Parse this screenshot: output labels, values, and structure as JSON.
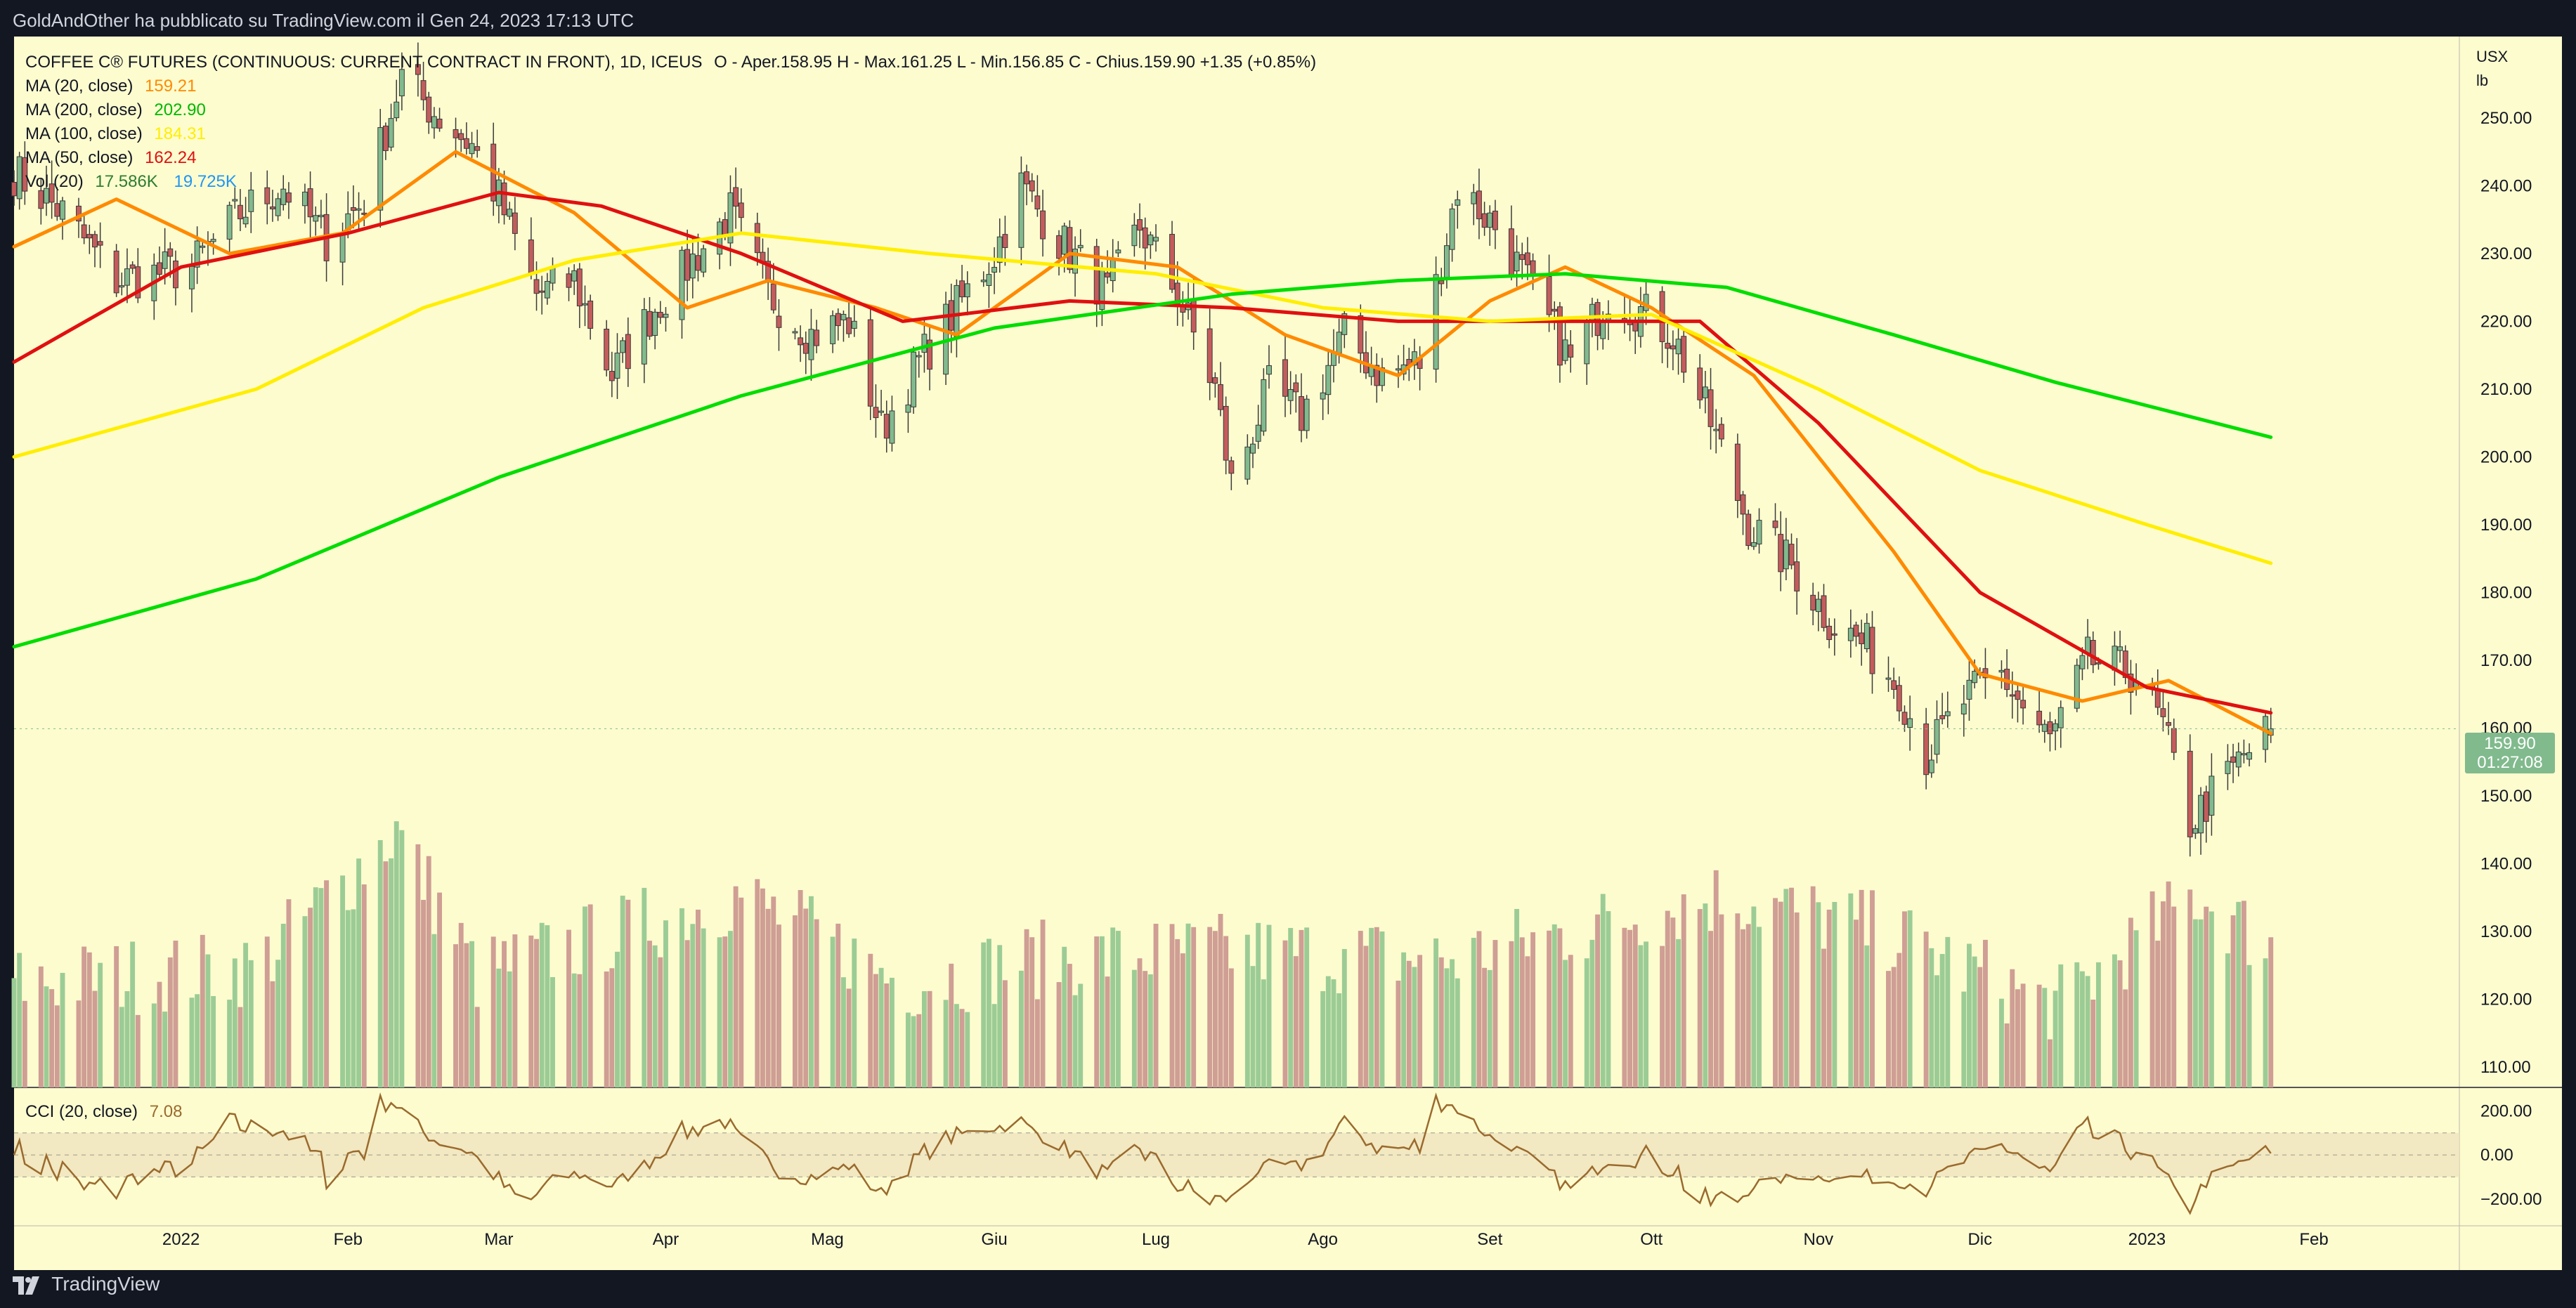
{
  "header": {
    "publish_text": "GoldAndOther ha pubblicato su TradingView.com il Gen 24, 2023 17:13 UTC"
  },
  "footer": {
    "brand": "TradingView",
    "logo_icon": "tradingview-logo-icon"
  },
  "colors": {
    "background": "#fdfccf",
    "up_candle": "#81ba8d",
    "down_candle": "#c45c5c",
    "vol_up": "#9ccc95",
    "vol_down": "#cf9e94",
    "ma20": "#ff8a00",
    "ma200": "#00dd00",
    "ma100": "#ffee00",
    "ma50": "#e01010",
    "cci": "#9a6a2e",
    "last_price_badge": "#81ba8d"
  },
  "legend": {
    "title": "COFFEE C® FUTURES (CONTINUOUS: CURRENT CONTRACT IN FRONT), 1D, ICEUS",
    "ohlc": "O - Aper.158.95  H - Max.161.25  L - Min.156.85  C - Chius.159.90  +1.35 (+0.85%)",
    "ma20_label": "MA (20, close)",
    "ma20_value": "159.21",
    "ma200_label": "MA (200, close)",
    "ma200_value": "202.90",
    "ma100_label": "MA (100, close)",
    "ma100_value": "184.31",
    "ma50_label": "MA (50, close)",
    "ma50_value": "162.24",
    "vol_label": "Vol (20)",
    "vol_value": "17.586K",
    "vol_ma_value": "19.725K",
    "cci_label": "CCI (20, close)",
    "cci_value": "7.08"
  },
  "price_badge": {
    "price": "159.90",
    "countdown": "01:27:08"
  },
  "chart_data": {
    "type": "candlestick",
    "symbol": "COFFEE C® FUTURES (CONTINUOUS: CURRENT CONTRACT IN FRONT)",
    "interval": "1D",
    "exchange": "ICEUS",
    "unit_top": "USX",
    "unit_bottom": "lb",
    "y_ticks": [
      250,
      240,
      230,
      220,
      210,
      200,
      190,
      180,
      170,
      160,
      150,
      140,
      130,
      120,
      110
    ],
    "y_tick_labels": [
      "250.00",
      "240.00",
      "230.00",
      "220.00",
      "210.00",
      "200.00",
      "190.00",
      "180.00",
      "170.00",
      "160.00",
      "150.00",
      "140.00",
      "130.00",
      "120.00",
      "110.00"
    ],
    "ylim": [
      107,
      262
    ],
    "x_range": [
      "2021-12-01",
      "2023-02-28"
    ],
    "x_ticks": [
      {
        "label": "2022",
        "date": "2022-01-01"
      },
      {
        "label": "Feb",
        "date": "2022-02-01"
      },
      {
        "label": "Mar",
        "date": "2022-03-01"
      },
      {
        "label": "Apr",
        "date": "2022-04-01"
      },
      {
        "label": "Mag",
        "date": "2022-05-01"
      },
      {
        "label": "Giu",
        "date": "2022-06-01"
      },
      {
        "label": "Lug",
        "date": "2022-07-01"
      },
      {
        "label": "Ago",
        "date": "2022-08-01"
      },
      {
        "label": "Set",
        "date": "2022-09-01"
      },
      {
        "label": "Ott",
        "date": "2022-10-01"
      },
      {
        "label": "Nov",
        "date": "2022-11-01"
      },
      {
        "label": "Dic",
        "date": "2022-12-01"
      },
      {
        "label": "2023",
        "date": "2023-01-01"
      },
      {
        "label": "Feb",
        "date": "2023-02-01"
      }
    ],
    "price_anchors": [
      {
        "date": "2021-12-01",
        "close": 242
      },
      {
        "date": "2021-12-10",
        "close": 236
      },
      {
        "date": "2021-12-20",
        "close": 226
      },
      {
        "date": "2022-01-03",
        "close": 228
      },
      {
        "date": "2022-01-12",
        "close": 236
      },
      {
        "date": "2022-01-20",
        "close": 240
      },
      {
        "date": "2022-01-28",
        "close": 232
      },
      {
        "date": "2022-02-04",
        "close": 238
      },
      {
        "date": "2022-02-11",
        "close": 256
      },
      {
        "date": "2022-02-18",
        "close": 250
      },
      {
        "date": "2022-02-24",
        "close": 246
      },
      {
        "date": "2022-03-01",
        "close": 238
      },
      {
        "date": "2022-03-08",
        "close": 224
      },
      {
        "date": "2022-03-15",
        "close": 226
      },
      {
        "date": "2022-03-22",
        "close": 212
      },
      {
        "date": "2022-03-30",
        "close": 222
      },
      {
        "date": "2022-04-07",
        "close": 230
      },
      {
        "date": "2022-04-13",
        "close": 236
      },
      {
        "date": "2022-04-20",
        "close": 224
      },
      {
        "date": "2022-04-28",
        "close": 218
      },
      {
        "date": "2022-05-05",
        "close": 220
      },
      {
        "date": "2022-05-11",
        "close": 204
      },
      {
        "date": "2022-05-18",
        "close": 214
      },
      {
        "date": "2022-05-25",
        "close": 222
      },
      {
        "date": "2022-06-01",
        "close": 230
      },
      {
        "date": "2022-06-06",
        "close": 240
      },
      {
        "date": "2022-06-13",
        "close": 232
      },
      {
        "date": "2022-06-22",
        "close": 224
      },
      {
        "date": "2022-06-28",
        "close": 234
      },
      {
        "date": "2022-07-05",
        "close": 224
      },
      {
        "date": "2022-07-12",
        "close": 210
      },
      {
        "date": "2022-07-15",
        "close": 196
      },
      {
        "date": "2022-07-22",
        "close": 210
      },
      {
        "date": "2022-07-28",
        "close": 206
      },
      {
        "date": "2022-08-05",
        "close": 218
      },
      {
        "date": "2022-08-12",
        "close": 212
      },
      {
        "date": "2022-08-19",
        "close": 214
      },
      {
        "date": "2022-08-26",
        "close": 240
      },
      {
        "date": "2022-09-02",
        "close": 234
      },
      {
        "date": "2022-09-09",
        "close": 224
      },
      {
        "date": "2022-09-16",
        "close": 214
      },
      {
        "date": "2022-09-23",
        "close": 224
      },
      {
        "date": "2022-09-28",
        "close": 222
      },
      {
        "date": "2022-10-05",
        "close": 218
      },
      {
        "date": "2022-10-12",
        "close": 205
      },
      {
        "date": "2022-10-19",
        "close": 190
      },
      {
        "date": "2022-10-27",
        "close": 184
      },
      {
        "date": "2022-11-03",
        "close": 176
      },
      {
        "date": "2022-11-10",
        "close": 172
      },
      {
        "date": "2022-11-16",
        "close": 166
      },
      {
        "date": "2022-11-21",
        "close": 156
      },
      {
        "date": "2022-11-28",
        "close": 164
      },
      {
        "date": "2022-12-05",
        "close": 168
      },
      {
        "date": "2022-12-09",
        "close": 163
      },
      {
        "date": "2022-12-14",
        "close": 158
      },
      {
        "date": "2022-12-21",
        "close": 170
      },
      {
        "date": "2022-12-30",
        "close": 168
      },
      {
        "date": "2023-01-04",
        "close": 160
      },
      {
        "date": "2023-01-09",
        "close": 146
      },
      {
        "date": "2023-01-13",
        "close": 150
      },
      {
        "date": "2023-01-19",
        "close": 156
      },
      {
        "date": "2023-01-24",
        "close": 159.9
      }
    ],
    "moving_averages": [
      {
        "name": "MA (20, close)",
        "color": "#ff8a00",
        "last": 159.21,
        "points": [
          {
            "date": "2021-12-01",
            "value": 231
          },
          {
            "date": "2021-12-20",
            "value": 238
          },
          {
            "date": "2022-01-10",
            "value": 230
          },
          {
            "date": "2022-01-31",
            "value": 233
          },
          {
            "date": "2022-02-21",
            "value": 245
          },
          {
            "date": "2022-03-15",
            "value": 236
          },
          {
            "date": "2022-04-05",
            "value": 222
          },
          {
            "date": "2022-04-20",
            "value": 226
          },
          {
            "date": "2022-05-10",
            "value": 222
          },
          {
            "date": "2022-05-25",
            "value": 218
          },
          {
            "date": "2022-06-15",
            "value": 230
          },
          {
            "date": "2022-07-05",
            "value": 228
          },
          {
            "date": "2022-07-25",
            "value": 218
          },
          {
            "date": "2022-08-15",
            "value": 212
          },
          {
            "date": "2022-09-01",
            "value": 223
          },
          {
            "date": "2022-09-15",
            "value": 228
          },
          {
            "date": "2022-10-01",
            "value": 222
          },
          {
            "date": "2022-10-20",
            "value": 212
          },
          {
            "date": "2022-11-15",
            "value": 186
          },
          {
            "date": "2022-12-01",
            "value": 168
          },
          {
            "date": "2022-12-20",
            "value": 164
          },
          {
            "date": "2023-01-05",
            "value": 167
          },
          {
            "date": "2023-01-24",
            "value": 159.21
          }
        ]
      },
      {
        "name": "MA (50, close)",
        "color": "#e01010",
        "last": 162.24,
        "points": [
          {
            "date": "2021-12-01",
            "value": 214
          },
          {
            "date": "2022-01-01",
            "value": 228
          },
          {
            "date": "2022-02-01",
            "value": 233
          },
          {
            "date": "2022-03-01",
            "value": 239
          },
          {
            "date": "2022-03-20",
            "value": 237
          },
          {
            "date": "2022-04-15",
            "value": 230
          },
          {
            "date": "2022-05-15",
            "value": 220
          },
          {
            "date": "2022-06-15",
            "value": 223
          },
          {
            "date": "2022-07-15",
            "value": 222
          },
          {
            "date": "2022-08-15",
            "value": 220
          },
          {
            "date": "2022-09-15",
            "value": 220
          },
          {
            "date": "2022-10-10",
            "value": 220
          },
          {
            "date": "2022-11-01",
            "value": 205
          },
          {
            "date": "2022-12-01",
            "value": 180
          },
          {
            "date": "2023-01-01",
            "value": 166
          },
          {
            "date": "2023-01-24",
            "value": 162.24
          }
        ]
      },
      {
        "name": "MA (100, close)",
        "color": "#ffee00",
        "last": 184.31,
        "points": [
          {
            "date": "2021-12-01",
            "value": 200
          },
          {
            "date": "2022-01-15",
            "value": 210
          },
          {
            "date": "2022-02-15",
            "value": 222
          },
          {
            "date": "2022-03-15",
            "value": 229
          },
          {
            "date": "2022-04-15",
            "value": 233
          },
          {
            "date": "2022-05-20",
            "value": 230
          },
          {
            "date": "2022-07-01",
            "value": 227
          },
          {
            "date": "2022-08-01",
            "value": 222
          },
          {
            "date": "2022-09-01",
            "value": 220
          },
          {
            "date": "2022-10-01",
            "value": 221
          },
          {
            "date": "2022-11-01",
            "value": 210
          },
          {
            "date": "2022-12-01",
            "value": 198
          },
          {
            "date": "2023-01-01",
            "value": 190
          },
          {
            "date": "2023-01-24",
            "value": 184.31
          }
        ]
      },
      {
        "name": "MA (200, close)",
        "color": "#00dd00",
        "last": 202.9,
        "points": [
          {
            "date": "2021-12-01",
            "value": 172
          },
          {
            "date": "2022-01-15",
            "value": 182
          },
          {
            "date": "2022-03-01",
            "value": 197
          },
          {
            "date": "2022-04-15",
            "value": 209
          },
          {
            "date": "2022-06-01",
            "value": 219
          },
          {
            "date": "2022-07-15",
            "value": 224
          },
          {
            "date": "2022-08-15",
            "value": 226
          },
          {
            "date": "2022-09-15",
            "value": 227
          },
          {
            "date": "2022-10-15",
            "value": 225
          },
          {
            "date": "2022-11-15",
            "value": 218
          },
          {
            "date": "2022-12-15",
            "value": 211
          },
          {
            "date": "2023-01-24",
            "value": 202.9
          }
        ]
      }
    ],
    "volume_anchors": [
      {
        "date": "2021-12-01",
        "value": 13
      },
      {
        "date": "2022-01-15",
        "value": 15
      },
      {
        "date": "2022-02-10",
        "value": 32
      },
      {
        "date": "2022-02-25",
        "value": 14
      },
      {
        "date": "2022-04-15",
        "value": 24
      },
      {
        "date": "2022-05-15",
        "value": 13
      },
      {
        "date": "2022-06-10",
        "value": 16
      },
      {
        "date": "2022-07-15",
        "value": 17
      },
      {
        "date": "2022-08-25",
        "value": 16
      },
      {
        "date": "2022-10-15",
        "value": 24
      },
      {
        "date": "2022-11-15",
        "value": 19
      },
      {
        "date": "2022-12-15",
        "value": 10
      },
      {
        "date": "2023-01-10",
        "value": 24
      },
      {
        "date": "2023-01-24",
        "value": 17.586
      }
    ],
    "volume_ma": {
      "name": "Vol (20)",
      "last_value": "17.586K",
      "ma_value": "19.725K"
    },
    "cci": {
      "name": "CCI (20, close)",
      "last": 7.08,
      "ticks": [
        200,
        0,
        -200
      ],
      "tick_labels": [
        "200.00",
        "0.00",
        "−200.00"
      ],
      "band_upper": 100,
      "band_lower": -100,
      "ylim": [
        -290,
        300
      ]
    },
    "last_price": 159.9,
    "countdown": "01:27:08"
  }
}
